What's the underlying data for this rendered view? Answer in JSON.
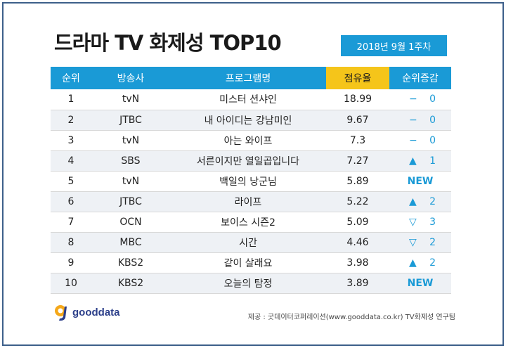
{
  "title": "드라마 TV 화제성 TOP10",
  "week": "2018년  9월 1주차",
  "headers": {
    "rank": "순위",
    "channel": "방송사",
    "program": "프로그램명",
    "share": "점유율",
    "change": "순위증감"
  },
  "rows": [
    {
      "rank": "1",
      "channel": "tvN",
      "program": "미스터 션샤인",
      "share": "18.99",
      "symbol": "−",
      "delta": "0",
      "dir": "same"
    },
    {
      "rank": "2",
      "channel": "JTBC",
      "program": "내 아이디는 강남미인",
      "share": "9.67",
      "symbol": "−",
      "delta": "0",
      "dir": "same"
    },
    {
      "rank": "3",
      "channel": "tvN",
      "program": "아는 와이프",
      "share": "7.3",
      "symbol": "−",
      "delta": "0",
      "dir": "same"
    },
    {
      "rank": "4",
      "channel": "SBS",
      "program": "서른이지만 열일곱입니다",
      "share": "7.27",
      "symbol": "▲",
      "delta": "1",
      "dir": "up"
    },
    {
      "rank": "5",
      "channel": "tvN",
      "program": "백일의 낭군님",
      "share": "5.89",
      "symbol": "",
      "delta": "NEW",
      "dir": "new"
    },
    {
      "rank": "6",
      "channel": "JTBC",
      "program": "라이프",
      "share": "5.22",
      "symbol": "▲",
      "delta": "2",
      "dir": "up"
    },
    {
      "rank": "7",
      "channel": "OCN",
      "program": "보이스 시즌2",
      "share": "5.09",
      "symbol": "▽",
      "delta": "3",
      "dir": "down"
    },
    {
      "rank": "8",
      "channel": "MBC",
      "program": "시간",
      "share": "4.46",
      "symbol": "▽",
      "delta": "2",
      "dir": "down"
    },
    {
      "rank": "9",
      "channel": "KBS2",
      "program": "같이 살래요",
      "share": "3.98",
      "symbol": "▲",
      "delta": "2",
      "dir": "up"
    },
    {
      "rank": "10",
      "channel": "KBS2",
      "program": "오늘의 탐정",
      "share": "3.89",
      "symbol": "",
      "delta": "NEW",
      "dir": "new"
    }
  ],
  "logo": {
    "text": "gooddata",
    "icon": "gooddata-logo-icon"
  },
  "source": "제공 : 굿데이터코퍼레이션(www.gooddata.co.kr) TV화제성 연구팀",
  "colors": {
    "header": "#1a9ad6",
    "share_header": "#f5c51a",
    "accent": "#1a9ad6",
    "stripe": "#eef1f5",
    "border": "#3d5f8a"
  }
}
